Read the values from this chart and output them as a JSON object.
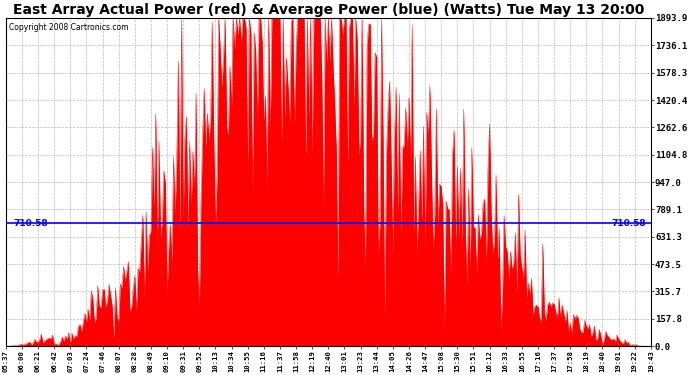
{
  "title": "East Array Actual Power (red) & Average Power (blue) (Watts) Tue May 13 20:00",
  "copyright": "Copyright 2008 Cartronics.com",
  "y_min": 0.0,
  "y_max": 1893.9,
  "y_ticks": [
    0.0,
    157.8,
    315.7,
    473.5,
    631.3,
    789.1,
    947.0,
    1104.8,
    1262.6,
    1420.4,
    1578.3,
    1736.1,
    1893.9
  ],
  "avg_power": 710.58,
  "avg_label": "710.58",
  "background_color": "#ffffff",
  "fill_color": "#ff0000",
  "line_color": "#0000ff",
  "grid_color": "#aaaaaa",
  "title_fontsize": 10,
  "x_labels": [
    "05:37",
    "06:00",
    "06:21",
    "06:42",
    "07:03",
    "07:24",
    "07:46",
    "08:07",
    "08:28",
    "08:49",
    "09:10",
    "09:31",
    "09:52",
    "10:13",
    "10:34",
    "10:55",
    "11:16",
    "11:37",
    "11:58",
    "12:19",
    "12:40",
    "13:01",
    "13:23",
    "13:44",
    "14:05",
    "14:26",
    "14:47",
    "15:08",
    "15:30",
    "15:51",
    "16:12",
    "16:33",
    "16:55",
    "17:16",
    "17:37",
    "17:58",
    "18:19",
    "18:40",
    "19:01",
    "19:22",
    "19:43"
  ],
  "figwidth": 6.9,
  "figheight": 3.75,
  "dpi": 100
}
